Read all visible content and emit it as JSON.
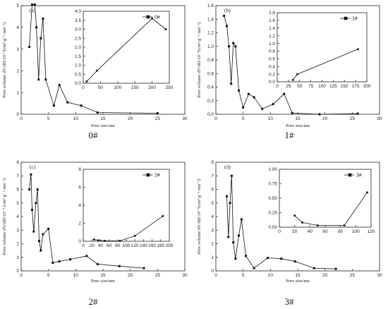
{
  "chart_data": [
    {
      "type": "line",
      "caption": "0#",
      "panel_label": "(a)",
      "ylabel": "Pore volume dV/dD/10⁻⁴(cm³·g⁻¹·nm⁻¹)",
      "xlabel": "Pore size/nm",
      "xlim": [
        0,
        30
      ],
      "ylim": [
        0,
        5
      ],
      "x_ticks": [
        0,
        5,
        10,
        15,
        20,
        25,
        30
      ],
      "y_ticks": [
        0,
        1,
        2,
        3,
        4,
        5
      ],
      "x": [
        1.5,
        2.0,
        2.5,
        2.8,
        3.2,
        3.6,
        4.0,
        4.5,
        6.0,
        7.0,
        8.5,
        11.0,
        14.0,
        25.0
      ],
      "y": [
        3.1,
        5.05,
        5.05,
        4.0,
        1.6,
        3.5,
        4.4,
        1.6,
        0.4,
        1.35,
        0.55,
        0.4,
        0.08,
        0.05
      ],
      "inset": {
        "legend": "0#",
        "xlim": [
          0,
          250
        ],
        "ylim": [
          0,
          4.0
        ],
        "x_ticks": [
          0,
          50,
          100,
          150,
          200,
          250
        ],
        "y_ticks": [
          0.0,
          0.5,
          1.0,
          1.5,
          2.0,
          2.5,
          3.0,
          3.5,
          4.0
        ],
        "x": [
          10,
          40,
          200,
          240
        ],
        "y": [
          0.1,
          0.7,
          3.6,
          3.0
        ]
      }
    },
    {
      "type": "line",
      "caption": "1#",
      "panel_label": "(b)",
      "ylabel": "Pore volume dV/dD/10⁻⁴(cm³·g⁻¹·nm⁻¹)",
      "xlabel": "Pore size/nm",
      "xlim": [
        0,
        30
      ],
      "ylim": [
        0,
        1.6
      ],
      "x_ticks": [
        0,
        5,
        10,
        15,
        20,
        25,
        30
      ],
      "y_ticks": [
        0.0,
        0.2,
        0.4,
        0.6,
        0.8,
        1.0,
        1.2,
        1.4,
        1.6
      ],
      "x": [
        1.5,
        2.0,
        2.4,
        2.8,
        3.2,
        3.6,
        4.2,
        5.0,
        6.0,
        7.0,
        8.5,
        10.5,
        12.5,
        14.0,
        19.0,
        26.0
      ],
      "y": [
        1.45,
        1.3,
        1.0,
        0.45,
        1.05,
        1.0,
        0.35,
        0.1,
        0.3,
        0.25,
        0.08,
        0.15,
        0.3,
        0.02,
        0.0,
        0.01
      ],
      "inset": {
        "legend": "1#",
        "xlim": [
          0,
          200
        ],
        "ylim": [
          0,
          1.8
        ],
        "x_ticks": [
          0,
          25,
          50,
          75,
          100,
          125,
          150,
          175,
          200
        ],
        "y_ticks": [
          0.0,
          0.2,
          0.4,
          0.6,
          0.8,
          1.0,
          1.2,
          1.4,
          1.6,
          1.8
        ],
        "x": [
          35,
          45,
          180
        ],
        "y": [
          0.05,
          0.2,
          0.85
        ]
      }
    },
    {
      "type": "line",
      "caption": "2#",
      "panel_label": "(c)",
      "ylabel": "Pore volume dV/dD/10⁻⁴ (cm³·g⁻¹·nm⁻¹)",
      "xlabel": "Pore size/nm",
      "xlim": [
        0,
        30
      ],
      "ylim": [
        0,
        8
      ],
      "x_ticks": [
        0,
        5,
        10,
        15,
        20,
        25,
        30
      ],
      "y_ticks": [
        0,
        1,
        2,
        3,
        4,
        5,
        6,
        7,
        8
      ],
      "x": [
        1.5,
        1.8,
        2.0,
        2.3,
        2.7,
        3.0,
        3.3,
        3.6,
        4.0,
        5.0,
        5.8,
        7.0,
        9.0,
        12.0,
        14.0,
        18.0,
        22.5
      ],
      "y": [
        6.0,
        7.1,
        4.5,
        2.9,
        5.0,
        6.0,
        2.2,
        1.5,
        2.7,
        3.1,
        0.6,
        0.7,
        0.85,
        1.1,
        0.5,
        0.35,
        0.2
      ],
      "inset": {
        "legend": "2#",
        "xlim": [
          0,
          200
        ],
        "ylim": [
          0,
          8
        ],
        "x_ticks": [
          0,
          20,
          40,
          60,
          80,
          100,
          120,
          140,
          160,
          180,
          200
        ],
        "y_ticks": [
          0,
          2,
          4,
          6,
          8
        ],
        "x": [
          25,
          35,
          50,
          85,
          120,
          185
        ],
        "y": [
          0.2,
          0.1,
          0.05,
          0.05,
          0.6,
          2.8
        ]
      }
    },
    {
      "type": "line",
      "caption": "3#",
      "panel_label": "(d)",
      "ylabel": "Pore volume dV/dD/10⁻⁴(cm³·g⁻¹·nm⁻¹)",
      "xlabel": "Pore size/nm",
      "xlim": [
        0,
        30
      ],
      "ylim": [
        0,
        8
      ],
      "x_ticks": [
        0,
        5,
        10,
        15,
        20,
        25,
        30
      ],
      "y_ticks": [
        0.0,
        1.0,
        2.0,
        3.0,
        4.0,
        5.0,
        6.0,
        7.0,
        8.0
      ],
      "x": [
        2.0,
        2.3,
        2.6,
        2.9,
        3.2,
        3.6,
        4.2,
        4.7,
        5.5,
        7.0,
        9.5,
        12.0,
        14.5,
        18.0,
        22.0
      ],
      "y": [
        5.5,
        2.5,
        5.0,
        7.0,
        2.1,
        0.9,
        2.6,
        3.8,
        1.1,
        0.2,
        0.95,
        0.9,
        0.7,
        0.2,
        0.15
      ],
      "inset": {
        "legend": "3#",
        "xlim": [
          0,
          120
        ],
        "ylim": [
          0,
          1.0
        ],
        "x_ticks": [
          0,
          20,
          40,
          60,
          80,
          100,
          120
        ],
        "y_ticks": [
          0.0,
          0.25,
          0.5,
          0.75,
          1.0
        ],
        "x": [
          20,
          30,
          50,
          85,
          115
        ],
        "y": [
          0.2,
          0.08,
          0.03,
          0.03,
          0.6
        ]
      }
    }
  ]
}
